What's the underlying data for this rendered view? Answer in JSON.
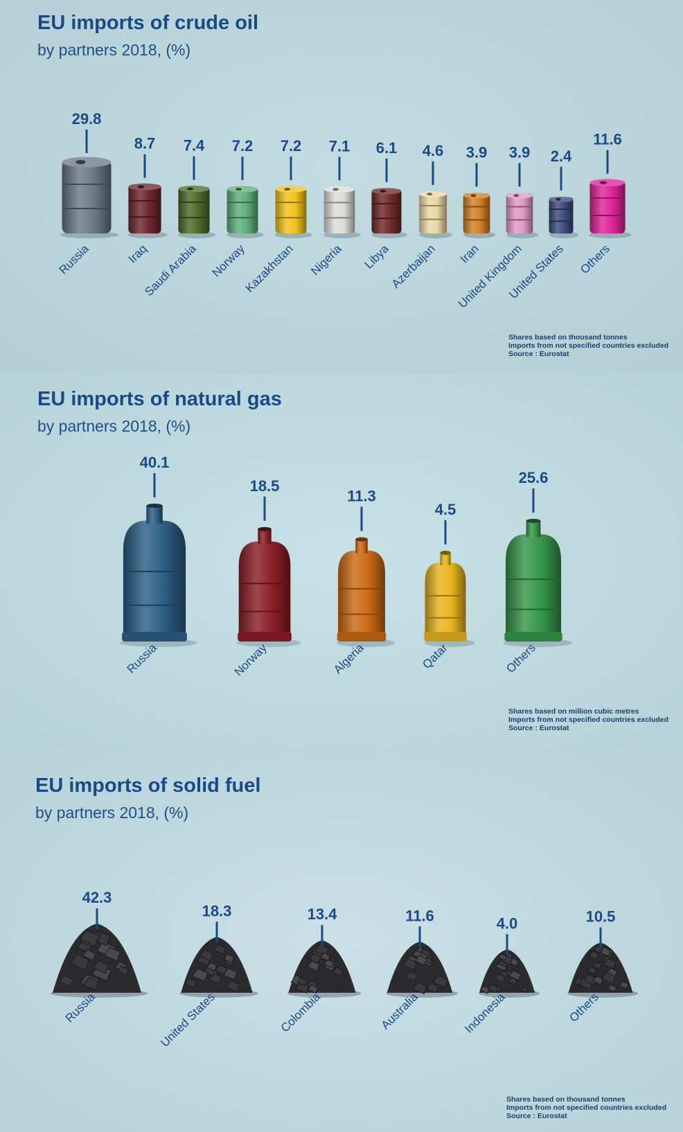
{
  "chart_data": [
    {
      "type": "bar",
      "title": "EU imports of crude oil",
      "subtitle": "by partners 2018, (%)",
      "categories": [
        "Russia",
        "Iraq",
        "Saudi Arabia",
        "Norway",
        "Kazakhstan",
        "Nigeria",
        "Libya",
        "Azerbaijan",
        "Iran",
        "United Kingdom",
        "United States",
        "Others"
      ],
      "values": [
        29.8,
        8.7,
        7.4,
        7.2,
        7.2,
        7.1,
        6.1,
        4.6,
        3.9,
        3.9,
        2.4,
        11.6
      ],
      "value_labels": [
        "29.8",
        "8.7",
        "7.4",
        "7.2",
        "7.2",
        "7.1",
        "6.1",
        "4.6",
        "3.9",
        "3.9",
        "2.4",
        "11.6"
      ],
      "colors": [
        "#6b7a88",
        "#6e2630",
        "#4c6b2b",
        "#5fae7c",
        "#f2c21a",
        "#dcdcd8",
        "#702a2a",
        "#ecd8a6",
        "#d27f25",
        "#e09ac6",
        "#3d4a7c",
        "#e0239a"
      ],
      "notes": [
        "Shares based on thousand tonnes",
        "Imports from not specified countries excluded",
        "Source : Eurostat"
      ]
    },
    {
      "type": "bar",
      "title": "EU imports of natural gas",
      "subtitle": "by partners 2018, (%)",
      "categories": [
        "Russia",
        "Norway",
        "Algeria",
        "Qatar",
        "Others"
      ],
      "values": [
        40.1,
        18.5,
        11.3,
        4.5,
        25.6
      ],
      "value_labels": [
        "40.1",
        "18.5",
        "11.3",
        "4.5",
        "25.6"
      ],
      "colors": [
        "#2c5f86",
        "#8c1f28",
        "#cc6a16",
        "#e7b51f",
        "#36964a"
      ],
      "notes": [
        "Shares based on million cubic metres",
        "Imports from not specified countries excluded",
        "Source : Eurostat"
      ]
    },
    {
      "type": "bar",
      "title": "EU imports of solid fuel",
      "subtitle": "by partners 2018, (%)",
      "categories": [
        "Russia",
        "United States",
        "Colombia",
        "Australia",
        "Indonesia",
        "Others"
      ],
      "values": [
        42.3,
        18.3,
        13.4,
        11.6,
        4.0,
        10.5
      ],
      "value_labels": [
        "42.3",
        "18.3",
        "13.4",
        "11.6",
        "4.0",
        "10.5"
      ],
      "colors": [
        "#2b2b2d"
      ],
      "notes": [
        "Shares based on thousand tonnes",
        "Imports from not specified countries excluded",
        "Source : Eurostat"
      ]
    }
  ],
  "theme": {
    "text_color": "#1a4a85",
    "note_color": "#1b3f70",
    "coal_color": "#2b2b2d"
  }
}
